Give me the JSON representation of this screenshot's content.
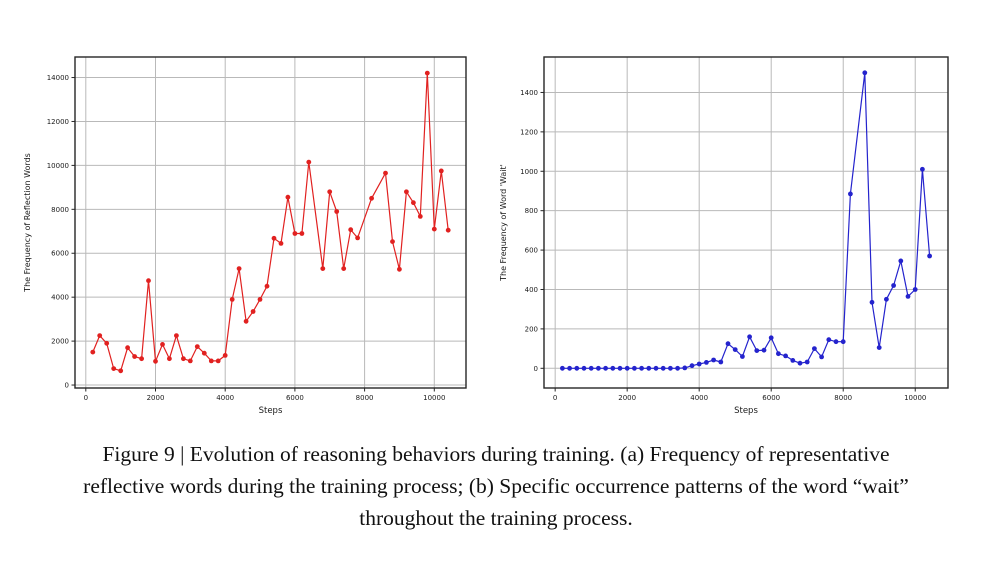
{
  "caption": {
    "line1": "Figure 9 | Evolution of reasoning behaviors during training. (a) Frequency of representative",
    "line2": "reflective words during the training process; (b) Specific occurrence patterns of the word “wait”",
    "line3": "throughout the training process."
  },
  "chart_data": [
    {
      "id": "reflection-words",
      "panel": "a",
      "type": "line",
      "title": "",
      "xlabel": "Steps",
      "ylabel": "The Frequency of Reflection Words",
      "legend": null,
      "grid": true,
      "line_color": "#e12120",
      "marker": "circle",
      "xlim": [
        -310,
        10910
      ],
      "ylim": [
        -135,
        14935
      ],
      "xticks": [
        0,
        2000,
        4000,
        6000,
        8000,
        10000
      ],
      "yticks": [
        0,
        2000,
        4000,
        6000,
        8000,
        10000,
        12000,
        14000
      ],
      "x": [
        200,
        400,
        600,
        800,
        1000,
        1200,
        1400,
        1600,
        1800,
        2000,
        2200,
        2400,
        2600,
        2800,
        3000,
        3200,
        3400,
        3600,
        3800,
        4000,
        4200,
        4400,
        4600,
        4800,
        5000,
        5200,
        5400,
        5600,
        5800,
        6000,
        6200,
        6400,
        6800,
        7000,
        7200,
        7400,
        7600,
        7800,
        8200,
        8600,
        8800,
        9000,
        9200,
        9400,
        9600,
        9800,
        10000,
        10200,
        10400
      ],
      "y": [
        1500,
        2250,
        1900,
        750,
        650,
        1700,
        1300,
        1200,
        4750,
        1080,
        1850,
        1200,
        2250,
        1200,
        1100,
        1750,
        1450,
        1100,
        1100,
        1350,
        3900,
        5300,
        2900,
        3350,
        3900,
        4500,
        6680,
        6450,
        8550,
        6900,
        6900,
        10150,
        5300,
        8800,
        7900,
        5300,
        7070,
        6700,
        8500,
        9650,
        6530,
        5270,
        8800,
        8300,
        7680,
        14200,
        7100,
        9750,
        7050
      ]
    },
    {
      "id": "word-wait",
      "panel": "b",
      "type": "line",
      "title": "",
      "xlabel": "Steps",
      "ylabel": "The Frequency of Word 'Wait'",
      "legend": null,
      "grid": true,
      "line_color": "#2423cd",
      "marker": "circle",
      "xlim": [
        -310,
        10910
      ],
      "ylim": [
        -100,
        1580
      ],
      "xticks": [
        0,
        2000,
        4000,
        6000,
        8000,
        10000
      ],
      "yticks": [
        0,
        200,
        400,
        600,
        800,
        1000,
        1200,
        1400
      ],
      "x": [
        200,
        400,
        600,
        800,
        1000,
        1200,
        1400,
        1600,
        1800,
        2000,
        2200,
        2400,
        2600,
        2800,
        3000,
        3200,
        3400,
        3600,
        3800,
        4000,
        4200,
        4400,
        4600,
        4800,
        5000,
        5200,
        5400,
        5600,
        5800,
        6000,
        6200,
        6400,
        6600,
        6800,
        7000,
        7200,
        7400,
        7600,
        7800,
        8000,
        8200,
        8600,
        8800,
        9000,
        9200,
        9400,
        9600,
        9800,
        10000,
        10200,
        10400
      ],
      "y": [
        0,
        0,
        0,
        0,
        0,
        0,
        0,
        0,
        0,
        0,
        0,
        0,
        0,
        0,
        0,
        0,
        0,
        2,
        13,
        22,
        30,
        42,
        32,
        125,
        95,
        60,
        160,
        90,
        92,
        155,
        74,
        63,
        40,
        26,
        32,
        100,
        58,
        145,
        135,
        135,
        885,
        1500,
        335,
        105,
        350,
        420,
        545,
        365,
        400,
        1010,
        570
      ]
    }
  ]
}
